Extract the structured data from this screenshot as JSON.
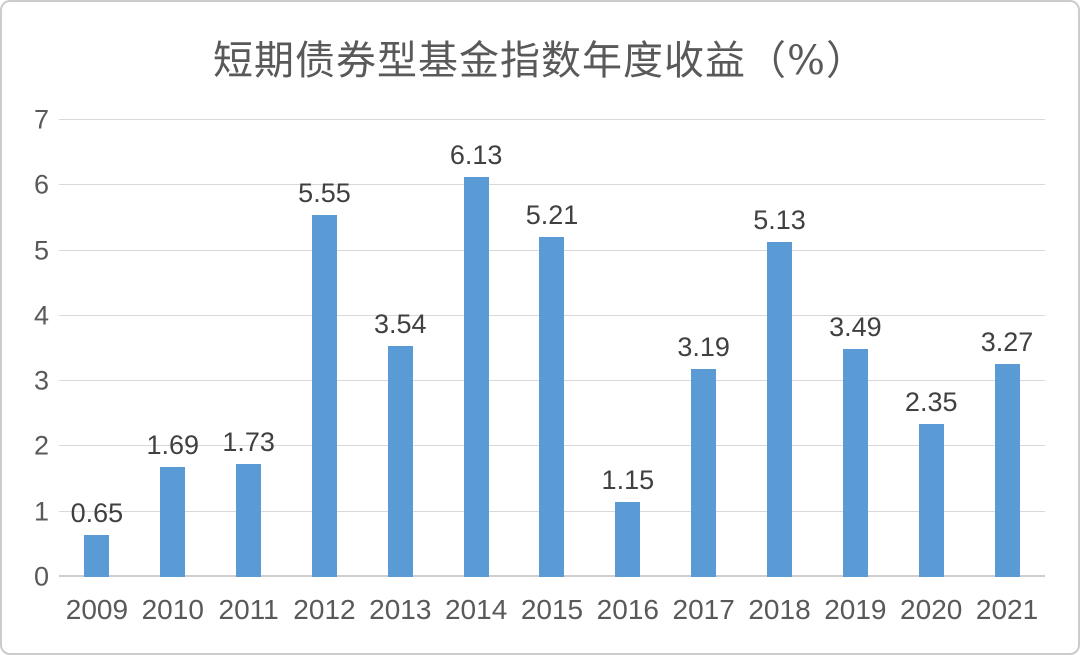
{
  "chart_data": {
    "type": "bar",
    "title": "短期债券型基金指数年度收益（%）",
    "categories": [
      "2009",
      "2010",
      "2011",
      "2012",
      "2013",
      "2014",
      "2015",
      "2016",
      "2017",
      "2018",
      "2019",
      "2020",
      "2021"
    ],
    "values": [
      0.65,
      1.69,
      1.73,
      5.55,
      3.54,
      6.13,
      5.21,
      1.15,
      3.19,
      5.13,
      3.49,
      2.35,
      3.27
    ],
    "value_labels": [
      "0.65",
      "1.69",
      "1.73",
      "5.55",
      "3.54",
      "6.13",
      "5.21",
      "1.15",
      "3.19",
      "5.13",
      "3.49",
      "2.35",
      "3.27"
    ],
    "xlabel": "",
    "ylabel": "",
    "ylim": [
      0,
      7
    ],
    "yticks": [
      0,
      1,
      2,
      3,
      4,
      5,
      6,
      7
    ],
    "grid": true,
    "legend": "none",
    "colors": {
      "bar": "#5b9bd5",
      "gridline": "#d9d9d9",
      "axis_line": "#cfcfcf",
      "title_text": "#595959",
      "tick_text": "#595959",
      "value_label_text": "#404040",
      "background": "#ffffff",
      "frame_border": "#cccccc"
    }
  }
}
